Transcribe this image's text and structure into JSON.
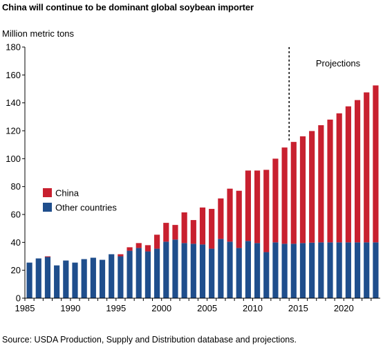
{
  "title": "China will continue to be dominant global soybean importer",
  "source": "Source: USDA Production, Supply and Distribution database and projections.",
  "colors": {
    "china": "#c8202f",
    "other": "#1f4e8c",
    "axis": "#000000",
    "grid": "#e6e6e6"
  },
  "chart_data": {
    "type": "bar",
    "stacked": true,
    "title": "China will continue to be dominant global soybean importer",
    "ylabel": "Million metric tons",
    "xlabel": "",
    "ylim": [
      0,
      180
    ],
    "yticks": [
      0,
      20,
      40,
      60,
      80,
      100,
      120,
      140,
      160,
      180
    ],
    "xticks": [
      1985,
      1990,
      1995,
      2000,
      2005,
      2010,
      2015,
      2020
    ],
    "grid": false,
    "legend": "middle-left",
    "annotation": {
      "label": "Projections",
      "x": 2014
    },
    "categories": [
      1985,
      1986,
      1987,
      1988,
      1989,
      1990,
      1991,
      1992,
      1993,
      1994,
      1995,
      1996,
      1997,
      1998,
      1999,
      2000,
      2001,
      2002,
      2003,
      2004,
      2005,
      2006,
      2007,
      2008,
      2009,
      2010,
      2011,
      2012,
      2013,
      2014,
      2015,
      2016,
      2017,
      2018,
      2019,
      2020,
      2021,
      2022,
      2023
    ],
    "series": [
      {
        "name": "Other countries",
        "key": "other",
        "values": [
          25.5,
          28.5,
          29.5,
          23.5,
          27,
          25.5,
          28,
          29,
          27.5,
          31.5,
          30,
          34,
          36,
          33.5,
          35.5,
          40.5,
          42,
          39.5,
          39,
          38.5,
          35.5,
          42.5,
          40.5,
          36,
          41,
          39.5,
          33,
          40,
          39,
          39,
          39.5,
          39.8,
          40,
          40,
          40,
          40,
          40,
          40,
          40
        ]
      },
      {
        "name": "China",
        "key": "china",
        "values": [
          0,
          0,
          0.5,
          0,
          0,
          0,
          0,
          0,
          0,
          0,
          1.5,
          2.5,
          3.5,
          4.5,
          10,
          13.5,
          10.5,
          22,
          17,
          26.5,
          28.5,
          29,
          38,
          41,
          50.5,
          52,
          59,
          60,
          69,
          73,
          76.5,
          80,
          84,
          88,
          92.5,
          97.5,
          102,
          107.5,
          112.5
        ]
      }
    ]
  }
}
